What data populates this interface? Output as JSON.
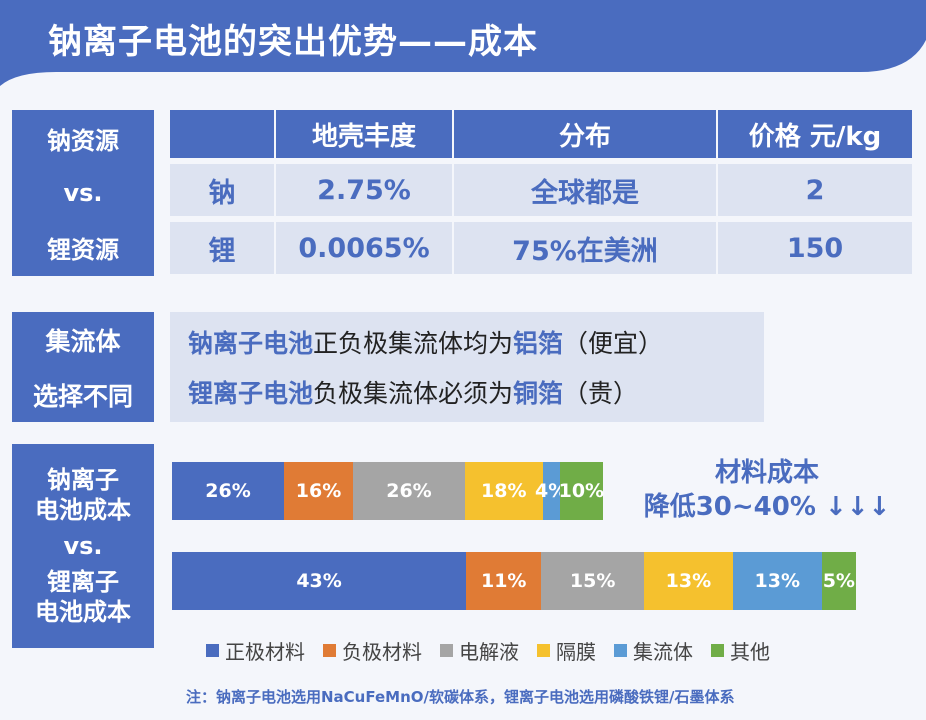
{
  "title": "钠离子电池的突出优势——成本",
  "resource_section": {
    "side_label": [
      "钠资源",
      "vs.",
      "锂资源"
    ],
    "headers": [
      "",
      "地壳丰度",
      "分布",
      "价格 元/kg"
    ],
    "rows": [
      {
        "element": "钠",
        "abundance": "2.75%",
        "distribution": "全球都是",
        "price": "2"
      },
      {
        "element": "锂",
        "abundance": "0.0065%",
        "distribution": "75%在美洲",
        "price": "150"
      }
    ]
  },
  "collector_section": {
    "side_label": [
      "集流体",
      "选择不同"
    ],
    "line1": {
      "subject": "钠离子电池",
      "middle": "正负极集流体均为",
      "material": "铝箔",
      "note": "（便宜）"
    },
    "line2": {
      "subject": "锂离子电池",
      "middle": "负极集流体必须为",
      "material": "铜箔",
      "note": "（贵）"
    }
  },
  "cost_section": {
    "side_label": [
      "钠离子",
      "电池成本",
      "vs.",
      "锂离子",
      "电池成本"
    ],
    "note_line1": "材料成本",
    "note_line2": "降低30~40% ↓↓↓"
  },
  "colors": {
    "accent": "#4a6cbf",
    "light_fill": "#dde3f1",
    "cathode": "#4a6cbf",
    "anode": "#e07b35",
    "electrolyte": "#a5a5a5",
    "separator": "#f5c12e",
    "collector": "#5b9bd5",
    "other": "#70ad47"
  },
  "chart_data": {
    "type": "bar",
    "orientation": "horizontal-stacked",
    "categories": [
      "钠离子电池成本",
      "锂离子电池成本"
    ],
    "series": [
      {
        "name": "正极材料",
        "color": "#4a6cbf",
        "values": [
          26,
          43
        ],
        "labels": [
          "26%",
          "43%"
        ]
      },
      {
        "name": "负极材料",
        "color": "#e07b35",
        "values": [
          16,
          11
        ],
        "labels": [
          "16%",
          "11%"
        ]
      },
      {
        "name": "电解液",
        "color": "#a5a5a5",
        "values": [
          26,
          15
        ],
        "labels": [
          "26%",
          "15%"
        ]
      },
      {
        "name": "隔膜",
        "color": "#f5c12e",
        "values": [
          18,
          13
        ],
        "labels": [
          "18%",
          "13%"
        ]
      },
      {
        "name": "集流体",
        "color": "#5b9bd5",
        "values": [
          4,
          13
        ],
        "labels": [
          "4%",
          "13%"
        ]
      },
      {
        "name": "其他",
        "color": "#70ad47",
        "values": [
          10,
          5
        ],
        "labels": [
          "10%",
          "5%"
        ]
      }
    ],
    "relative_scale": [
      0.63,
      1.0
    ],
    "legend_position": "bottom"
  },
  "footnote": "注：钠离子电池选用NaCuFeMnO/软碳体系，锂离子电池选用磷酸铁锂/石墨体系"
}
